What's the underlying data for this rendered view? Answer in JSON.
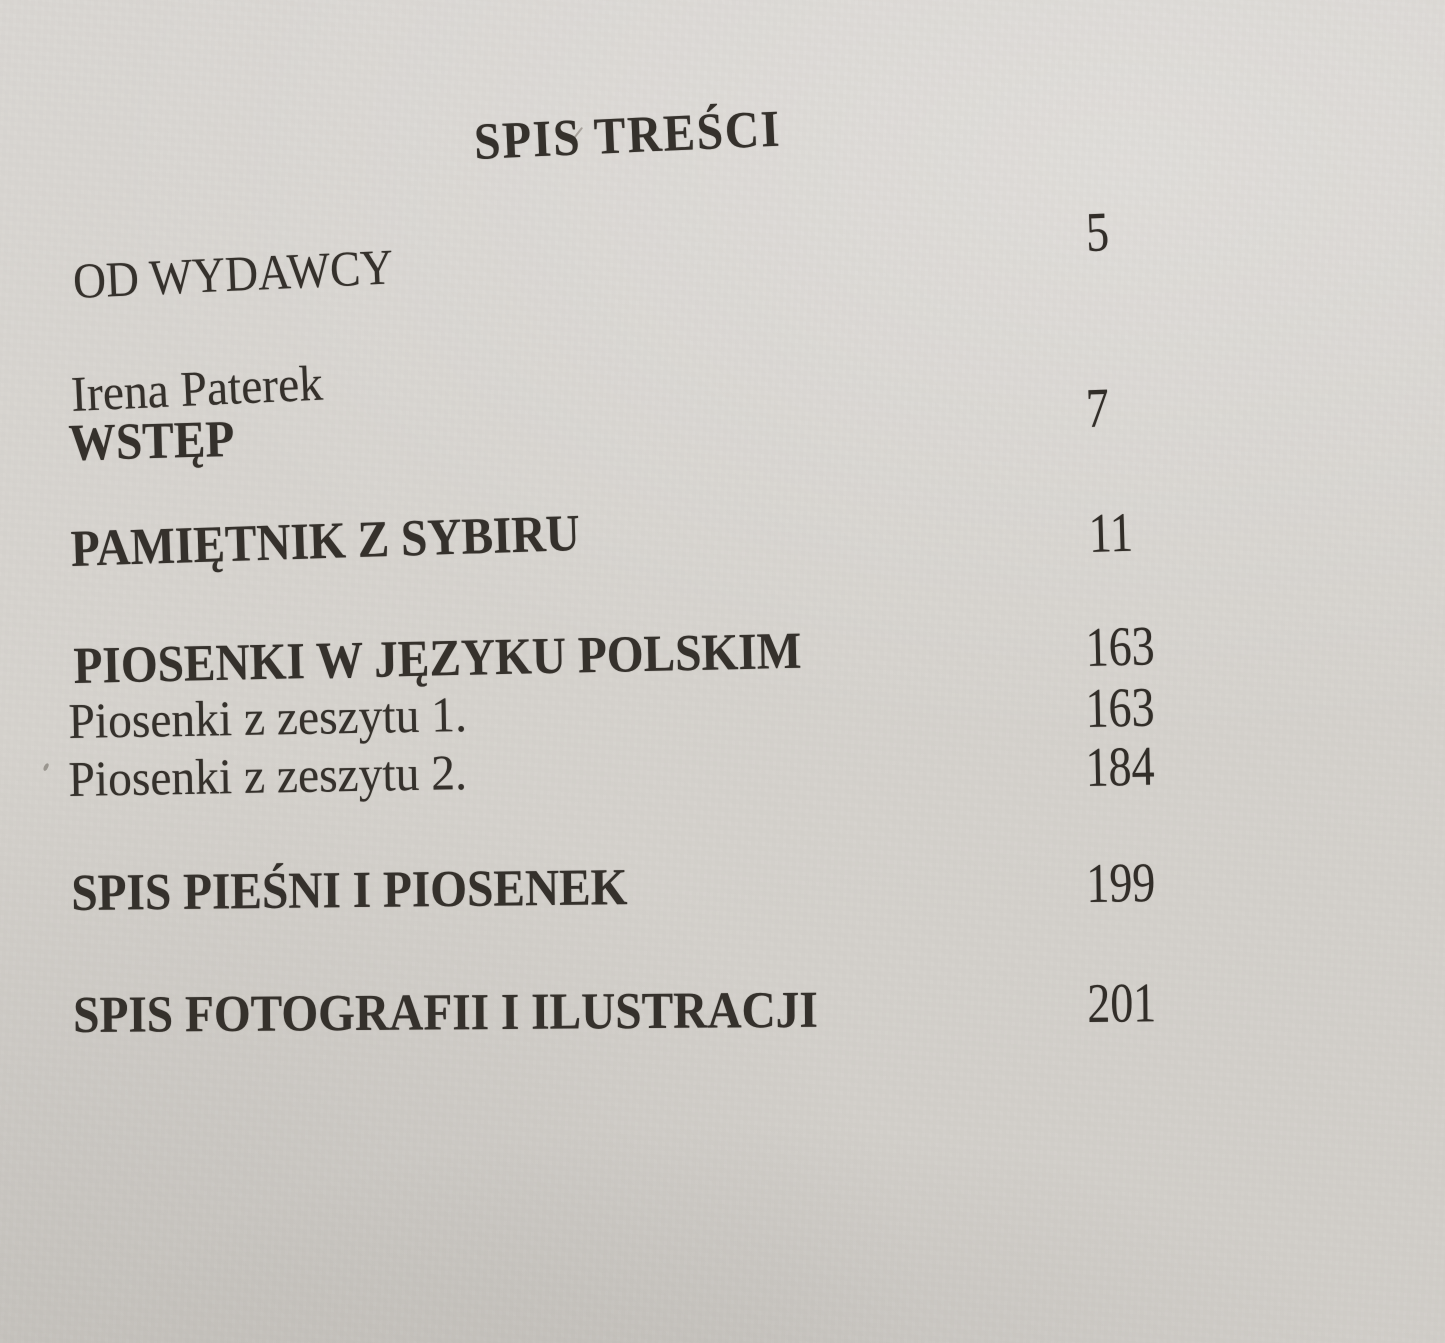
{
  "document": {
    "kind": "book-table-of-contents-photo",
    "language": "Polish",
    "colors": {
      "paper": "#d5d2cd",
      "ink": "#35312c"
    }
  },
  "toc": {
    "title": "SPIS TREŚCI",
    "entries": [
      {
        "label": "OD WYDAWCY",
        "page": "5"
      },
      {
        "author": "Irena Paterek",
        "label": "WSTĘP",
        "page": "7"
      },
      {
        "label": "PAMIĘTNIK Z SYBIRU",
        "page": "11"
      },
      {
        "label": "PIOSENKI W JĘZYKU POLSKIM",
        "page": "163"
      },
      {
        "label": "Piosenki z zeszytu 1.",
        "page": "163"
      },
      {
        "label": "Piosenki z zeszytu 2.",
        "page": "184"
      },
      {
        "label": "SPIS PIEŚNI I PIOSENEK",
        "page": "199"
      },
      {
        "label": "SPIS FOTOGRAFII I ILUSTRACJI",
        "page": "201"
      }
    ]
  }
}
